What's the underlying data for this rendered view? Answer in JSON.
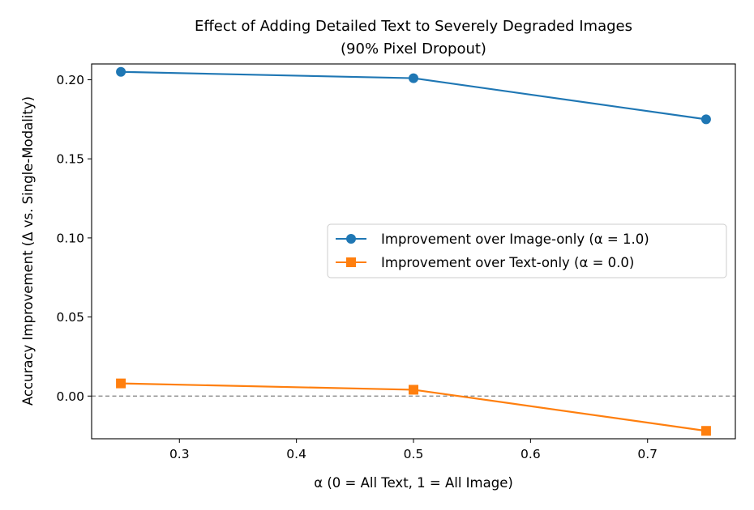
{
  "chart_data": {
    "type": "line",
    "title": "Effect of Adding Detailed Text to Severely Degraded Images",
    "subtitle": "(90% Pixel Dropout)",
    "xlabel": "α (0 = All Text, 1 = All Image)",
    "ylabel": "Accuracy Improvement (Δ vs. Single-Modality)",
    "xlim": [
      0.225,
      0.775
    ],
    "ylim": [
      -0.027,
      0.21
    ],
    "xticks": [
      0.3,
      0.4,
      0.5,
      0.6,
      0.7
    ],
    "xtick_labels": [
      "0.3",
      "0.4",
      "0.5",
      "0.6",
      "0.7"
    ],
    "yticks": [
      0.0,
      0.05,
      0.1,
      0.15,
      0.2
    ],
    "ytick_labels": [
      "0.00",
      "0.05",
      "0.10",
      "0.15",
      "0.20"
    ],
    "grid": false,
    "legend_position": "center-right",
    "reference_line": {
      "y": 0.0,
      "style": "dashed",
      "color": "#808080"
    },
    "series": [
      {
        "name": "Improvement over Image-only (α = 1.0)",
        "color": "#1f77b4",
        "marker": "circle",
        "x": [
          0.25,
          0.5,
          0.75
        ],
        "y": [
          0.205,
          0.201,
          0.175
        ]
      },
      {
        "name": "Improvement over Text-only (α = 0.0)",
        "color": "#ff7f0e",
        "marker": "square",
        "x": [
          0.25,
          0.5,
          0.75
        ],
        "y": [
          0.008,
          0.004,
          -0.022
        ]
      }
    ]
  }
}
